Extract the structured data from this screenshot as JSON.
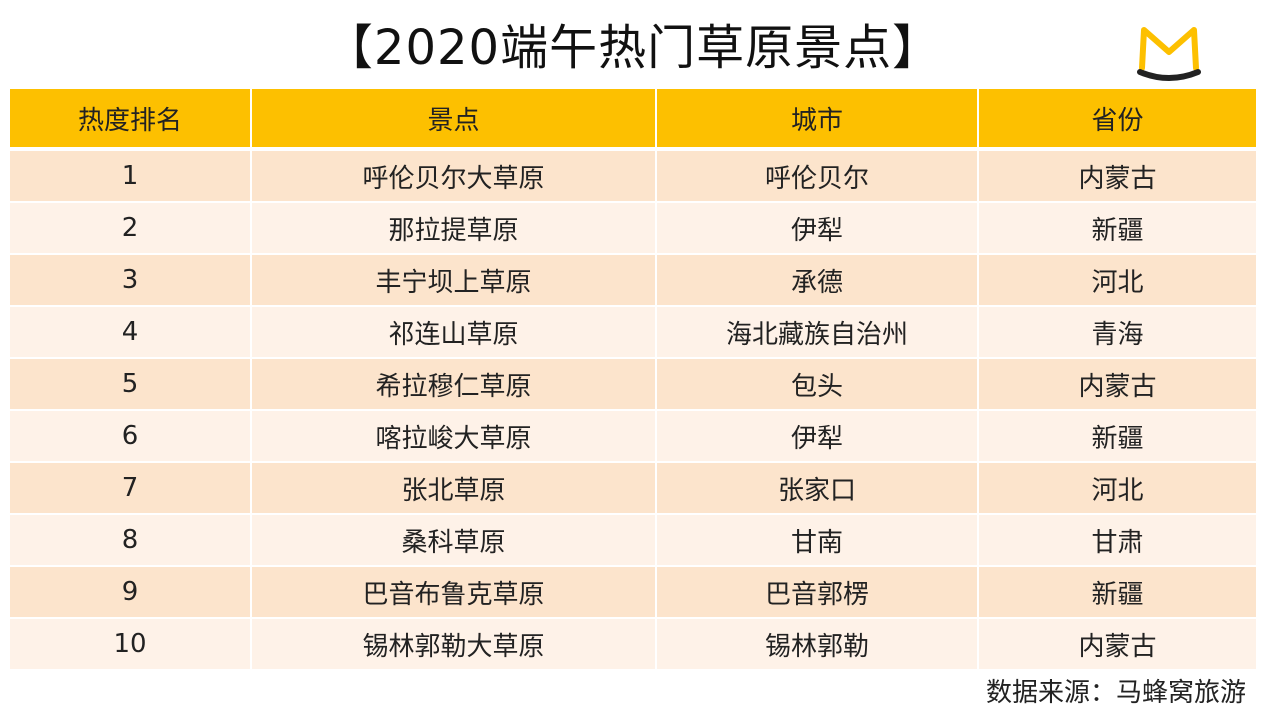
{
  "title": "【2020端午热门草原景点】",
  "logo": {
    "icon": "mafengwo-logo-icon",
    "colors": {
      "top": "#FDC000",
      "bottom": "#222222"
    }
  },
  "table": {
    "headers": [
      "热度排名",
      "景点",
      "城市",
      "省份"
    ],
    "rows": [
      [
        "1",
        "呼伦贝尔大草原",
        "呼伦贝尔",
        "内蒙古"
      ],
      [
        "2",
        "那拉提草原",
        "伊犁",
        "新疆"
      ],
      [
        "3",
        "丰宁坝上草原",
        "承德",
        "河北"
      ],
      [
        "4",
        "祁连山草原",
        "海北藏族自治州",
        "青海"
      ],
      [
        "5",
        "希拉穆仁草原",
        "包头",
        "内蒙古"
      ],
      [
        "6",
        "喀拉峻大草原",
        "伊犁",
        "新疆"
      ],
      [
        "7",
        "张北草原",
        "张家口",
        "河北"
      ],
      [
        "8",
        "桑科草原",
        "甘南",
        "甘肃"
      ],
      [
        "9",
        "巴音布鲁克草原",
        "巴音郭楞",
        "新疆"
      ],
      [
        "10",
        "锡林郭勒大草原",
        "锡林郭勒",
        "内蒙古"
      ]
    ]
  },
  "source": "数据来源：马蜂窝旅游",
  "colors": {
    "header": "#FDC000",
    "row_odd": "#FCE4CC",
    "row_even": "#FEF2E8"
  }
}
